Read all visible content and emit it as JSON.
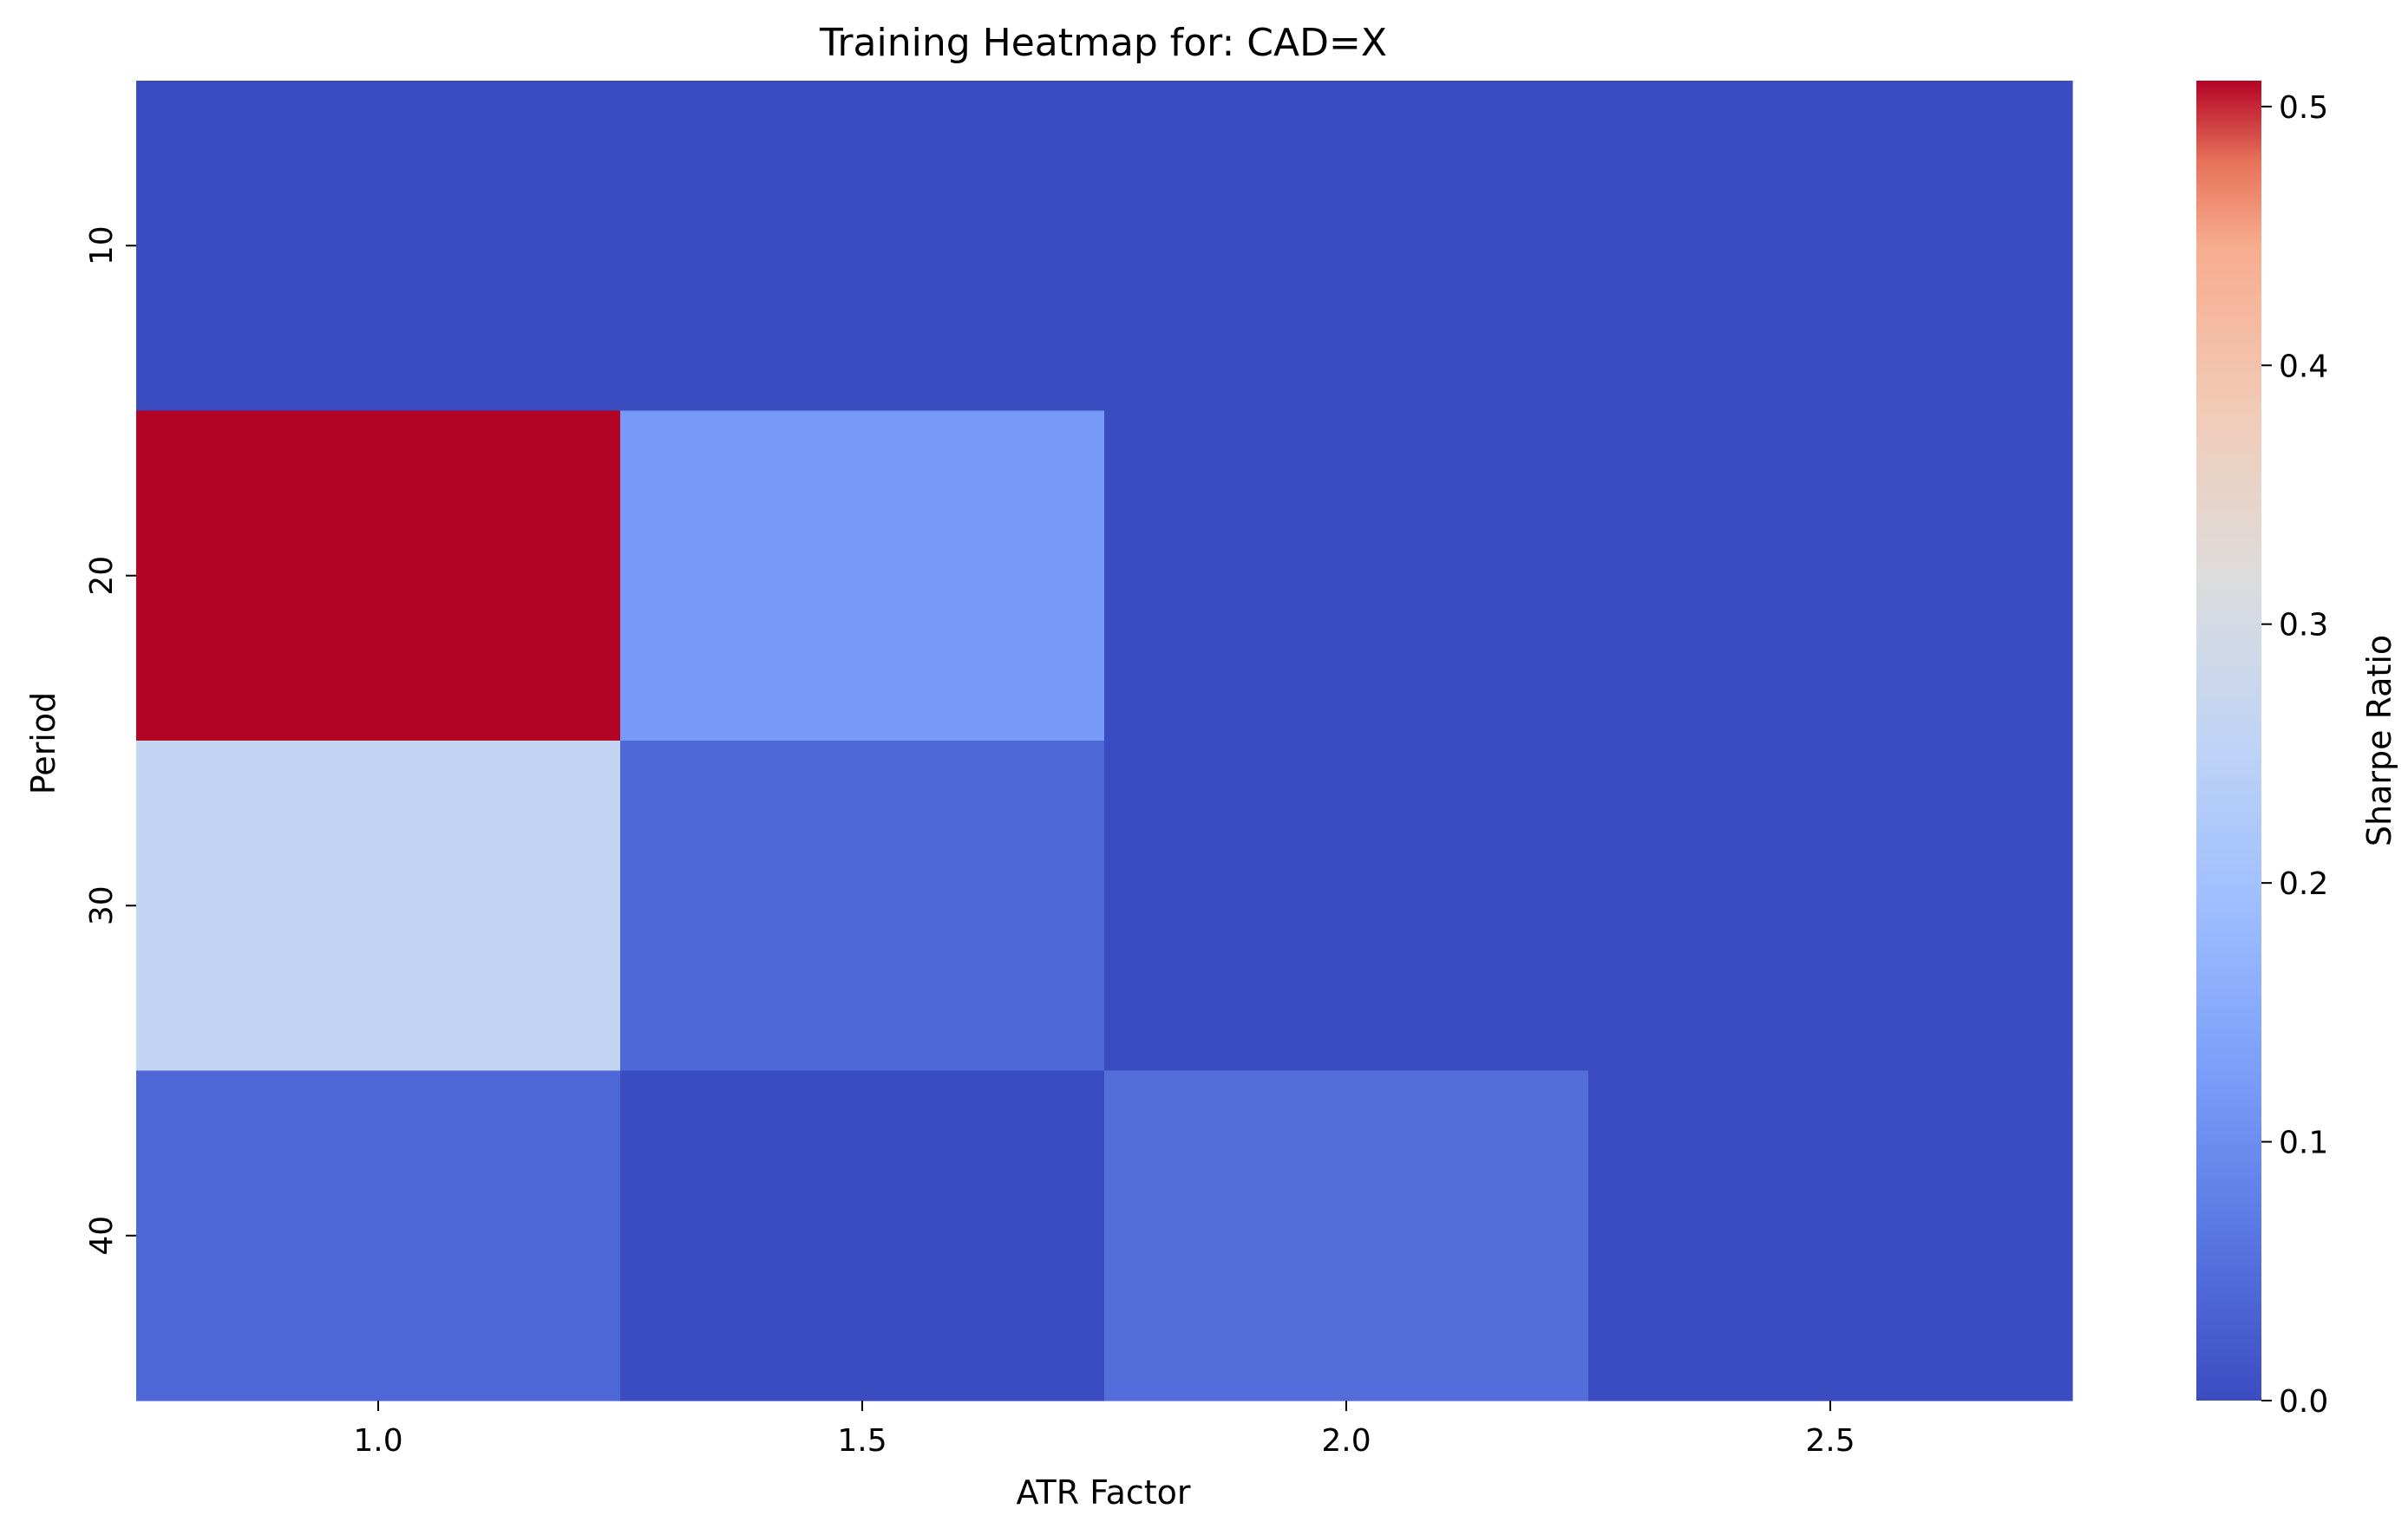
{
  "chart_data": {
    "type": "heatmap",
    "title": "Training Heatmap for: CAD=X",
    "xlabel": "ATR Factor",
    "ylabel": "Period",
    "x_categories": [
      "1.0",
      "1.5",
      "2.0",
      "2.5"
    ],
    "y_categories": [
      "10",
      "20",
      "30",
      "40"
    ],
    "values": [
      [
        0.0,
        0.0,
        0.0,
        0.0
      ],
      [
        0.51,
        0.12,
        0.0,
        0.0
      ],
      [
        0.26,
        0.04,
        0.0,
        0.0
      ],
      [
        0.04,
        0.0,
        0.05,
        0.0
      ]
    ],
    "colormap": "coolwarm",
    "colorbar": {
      "label": "Sharpe Ratio",
      "range": [
        0.0,
        0.51
      ],
      "ticks": [
        "0.0",
        "0.1",
        "0.2",
        "0.3",
        "0.4",
        "0.5"
      ]
    },
    "grid": false,
    "legend": "colorbar-right"
  }
}
